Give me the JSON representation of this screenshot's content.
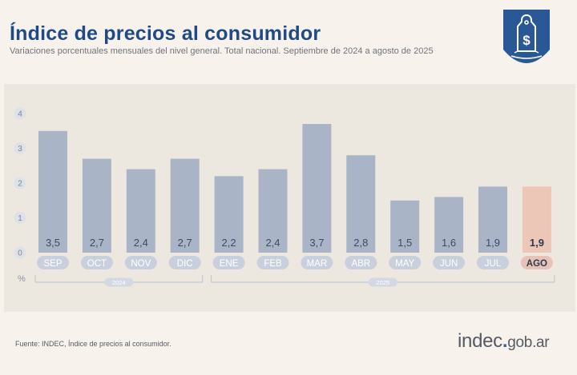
{
  "header": {
    "title": "Índice de precios al consumidor",
    "subtitle": "Variaciones porcentuales mensuales del nivel general. Total nacional. Septiembre de 2024 a agosto de 2025"
  },
  "footer": {
    "source": "Fuente: INDEC, Índice de precios al consumidor.",
    "brand_main": "indec",
    "brand_dot": ".",
    "brand_domain": "gob.ar"
  },
  "badge": {
    "icon": "price-tag-dollar-icon",
    "symbol": "$"
  },
  "colors": {
    "title": "#1f4a86",
    "bar": "#a9b5c7",
    "highlight_bar": "#ecc6b6",
    "label_pill": "#c8d0dd",
    "highlight_pill": "#e6c3b4",
    "badge": "#2a5795"
  },
  "chart_data": {
    "type": "bar",
    "title": "Índice de precios al consumidor",
    "subtitle": "Variaciones porcentuales mensuales del nivel general. Total nacional. Septiembre de 2024 a agosto de 2025",
    "xlabel": "",
    "ylabel": "%",
    "ylim": [
      0,
      4
    ],
    "yticks": [
      0,
      1,
      2,
      3,
      4
    ],
    "grid": false,
    "categories": [
      "SEP",
      "OCT",
      "NOV",
      "DIC",
      "ENE",
      "FEB",
      "MAR",
      "ABR",
      "MAY",
      "JUN",
      "JUL",
      "AGO"
    ],
    "values": [
      3.5,
      2.7,
      2.4,
      2.7,
      2.2,
      2.4,
      3.7,
      2.8,
      1.5,
      1.6,
      1.9,
      1.9
    ],
    "value_labels": [
      "3,5",
      "2,7",
      "2,4",
      "2,7",
      "2,2",
      "2,4",
      "3,7",
      "2,8",
      "1,5",
      "1,6",
      "1,9",
      "1,9"
    ],
    "highlight_index": 11,
    "year_groups": [
      {
        "label": "2024",
        "start": 0,
        "end": 3
      },
      {
        "label": "2025",
        "start": 4,
        "end": 11
      }
    ]
  }
}
